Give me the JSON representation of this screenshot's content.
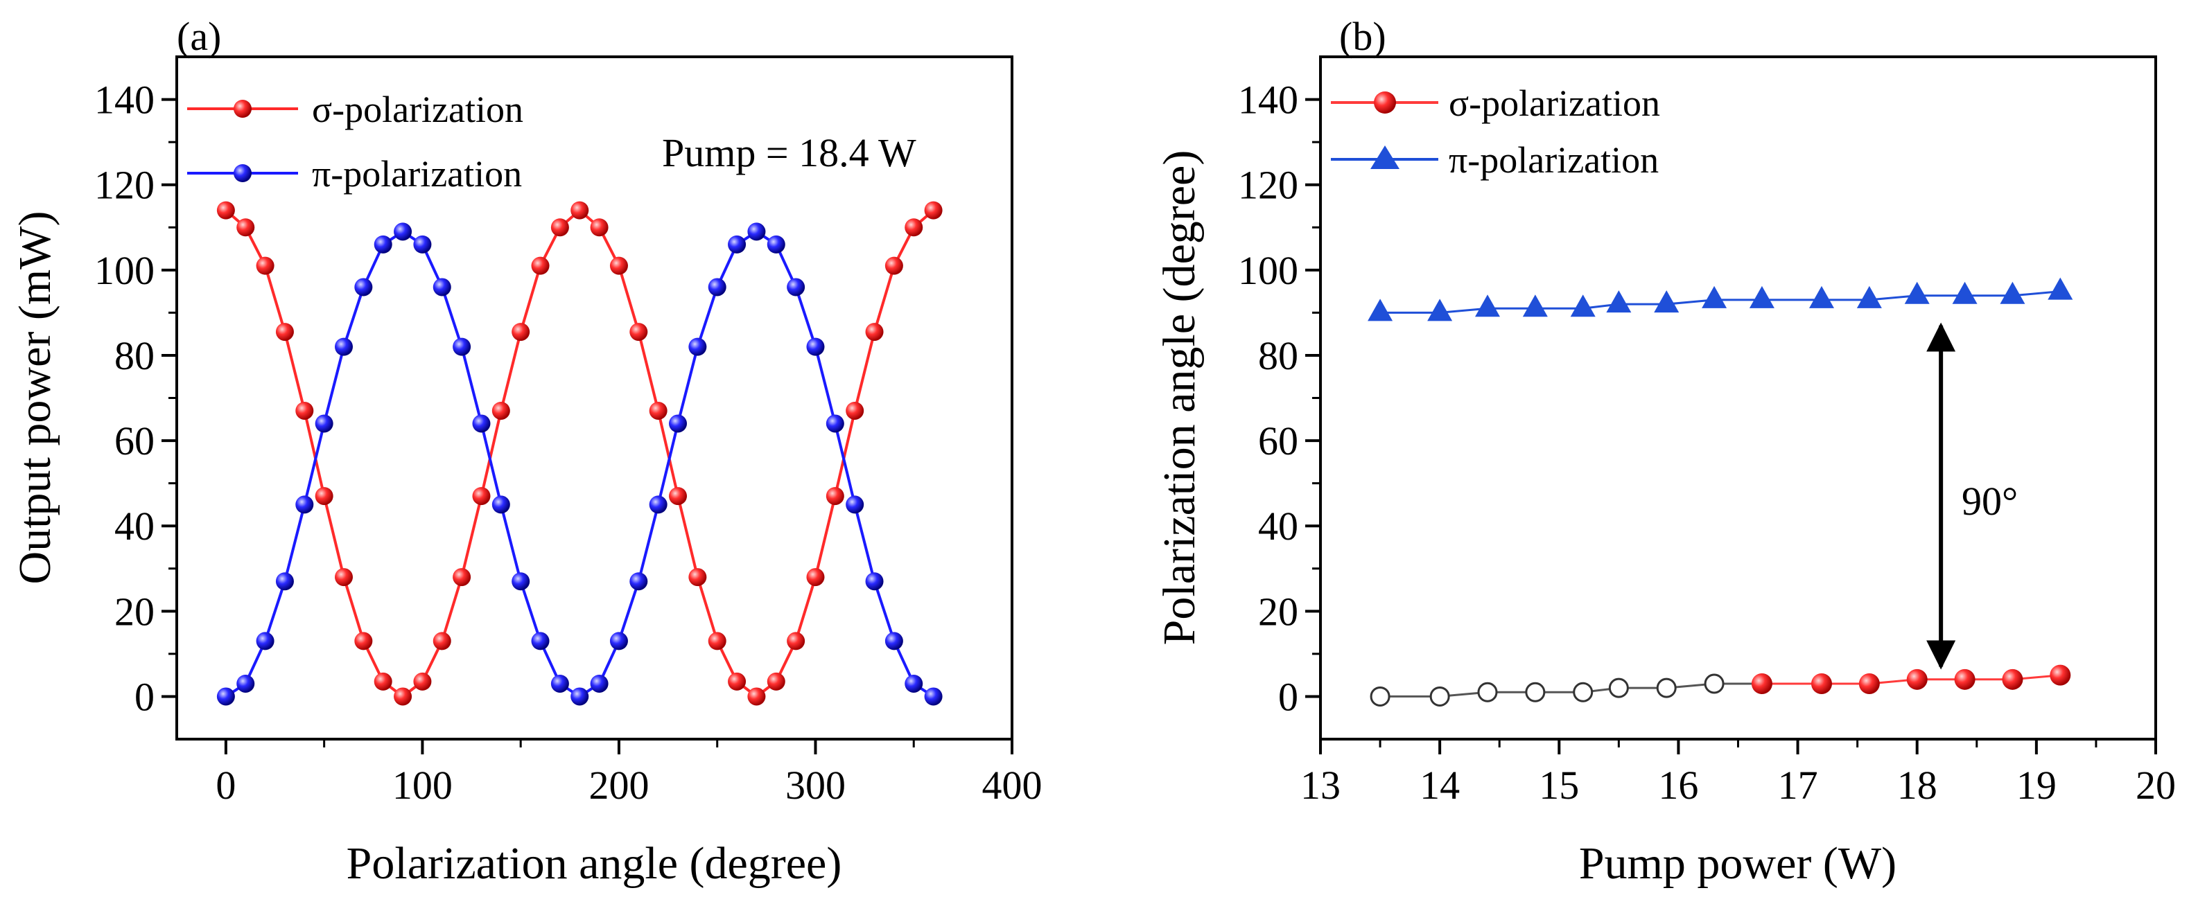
{
  "chart_data": [
    {
      "panel_label": "(a)",
      "type": "line",
      "xlabel": "Polarization angle (degree)",
      "ylabel": "Output power (mW)",
      "xlim": [
        -25,
        400
      ],
      "ylim": [
        -10,
        150
      ],
      "xticks": [
        0,
        100,
        200,
        300,
        400
      ],
      "yticks": [
        0,
        20,
        40,
        60,
        80,
        100,
        120,
        140
      ],
      "annotation": "Pump = 18.4 W",
      "legend_position": "top-left",
      "x": [
        0,
        10,
        20,
        30,
        40,
        50,
        60,
        70,
        80,
        90,
        100,
        110,
        120,
        130,
        140,
        150,
        160,
        170,
        180,
        190,
        200,
        210,
        220,
        230,
        240,
        250,
        260,
        270,
        280,
        290,
        300,
        310,
        320,
        330,
        340,
        350,
        360
      ],
      "series": [
        {
          "name": "σ-polarization",
          "color": "#ff2a2a",
          "marker": "sphere",
          "values": [
            114,
            110,
            101,
            85.5,
            67,
            47,
            28,
            13,
            3.5,
            0,
            3.5,
            13,
            28,
            47,
            67,
            85.5,
            101,
            110,
            114,
            110,
            101,
            85.5,
            67,
            47,
            28,
            13,
            3.5,
            0,
            3.5,
            13,
            28,
            47,
            67,
            85.5,
            101,
            110,
            114
          ]
        },
        {
          "name": "π-polarization",
          "color": "#1a1aff",
          "marker": "sphere",
          "values": [
            0,
            3,
            13,
            27,
            45,
            64,
            82,
            96,
            106,
            109,
            106,
            96,
            82,
            64,
            45,
            27,
            13,
            3,
            0,
            3,
            13,
            27,
            45,
            64,
            82,
            96,
            106,
            109,
            106,
            96,
            82,
            64,
            45,
            27,
            13,
            3,
            0
          ]
        }
      ]
    },
    {
      "panel_label": "(b)",
      "type": "line",
      "xlabel": "Pump power (W)",
      "ylabel": "Polarization angle (degree)",
      "xlim": [
        13,
        20
      ],
      "ylim": [
        -10,
        150
      ],
      "xticks": [
        13,
        14,
        15,
        16,
        17,
        18,
        19,
        20
      ],
      "yticks": [
        0,
        20,
        40,
        60,
        80,
        100,
        120,
        140
      ],
      "annotation": "90°",
      "annotation_note": "double-headed arrow between the two series",
      "legend_position": "top-left",
      "series": [
        {
          "name": "σ-polarization",
          "color": "#ff3b3b",
          "marker": "sphere",
          "open_marker_below_x": 16.5,
          "x": [
            13.5,
            14.0,
            14.4,
            14.8,
            15.2,
            15.5,
            15.9,
            16.3,
            16.7,
            17.2,
            17.6,
            18.0,
            18.4,
            18.8,
            19.2
          ],
          "values": [
            0,
            0,
            1,
            1,
            1,
            2,
            2,
            3,
            3,
            3,
            3,
            4,
            4,
            4,
            5
          ]
        },
        {
          "name": "π-polarization",
          "color": "#1f4fd8",
          "marker": "triangle",
          "x": [
            13.5,
            14.0,
            14.4,
            14.8,
            15.2,
            15.5,
            15.9,
            16.3,
            16.7,
            17.2,
            17.6,
            18.0,
            18.4,
            18.8,
            19.2
          ],
          "values": [
            90,
            90,
            91,
            91,
            91,
            92,
            92,
            93,
            93,
            93,
            93,
            94,
            94,
            94,
            95
          ]
        }
      ]
    }
  ]
}
